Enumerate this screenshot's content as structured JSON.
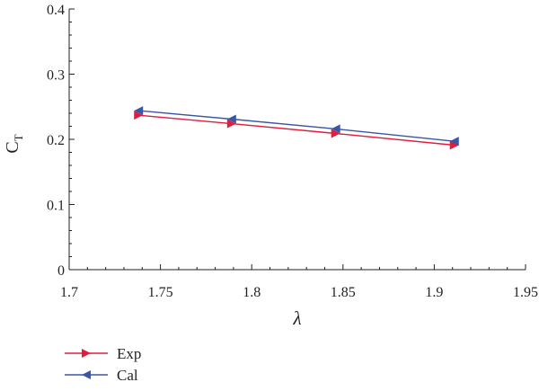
{
  "chart_data": {
    "type": "line",
    "xlabel": "λ",
    "ylabel": "C",
    "ylabel_subscript": "T",
    "xlim": [
      1.7,
      1.95
    ],
    "ylim": [
      0,
      0.4
    ],
    "x_ticks": [
      "1.7",
      "1.75",
      "1.8",
      "1.85",
      "1.9",
      "1.95"
    ],
    "y_ticks": [
      "0",
      "0.1",
      "0.2",
      "0.3",
      "0.4"
    ],
    "legend_position": "bottom-left",
    "series": [
      {
        "name": "Exp",
        "color": "#e31b3c",
        "marker": "triangle-right",
        "x": [
          1.738,
          1.789,
          1.846,
          1.911
        ],
        "y": [
          0.237,
          0.224,
          0.209,
          0.191
        ]
      },
      {
        "name": "Cal",
        "color": "#3a56a5",
        "marker": "triangle-left",
        "x": [
          1.738,
          1.789,
          1.846,
          1.911
        ],
        "y": [
          0.244,
          0.231,
          0.216,
          0.197
        ]
      }
    ]
  }
}
